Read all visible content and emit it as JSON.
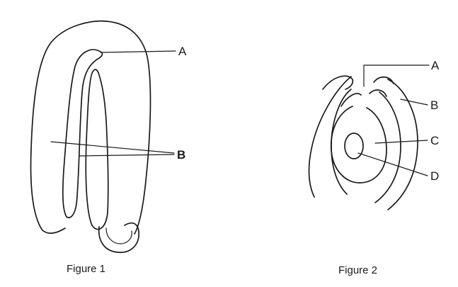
{
  "figures": [
    {
      "caption": "Figure 1",
      "labels": {
        "a": "A",
        "b": "B"
      }
    },
    {
      "caption": "Figure 2",
      "labels": {
        "a": "A",
        "b": "B",
        "c": "C",
        "d": "D"
      }
    }
  ]
}
